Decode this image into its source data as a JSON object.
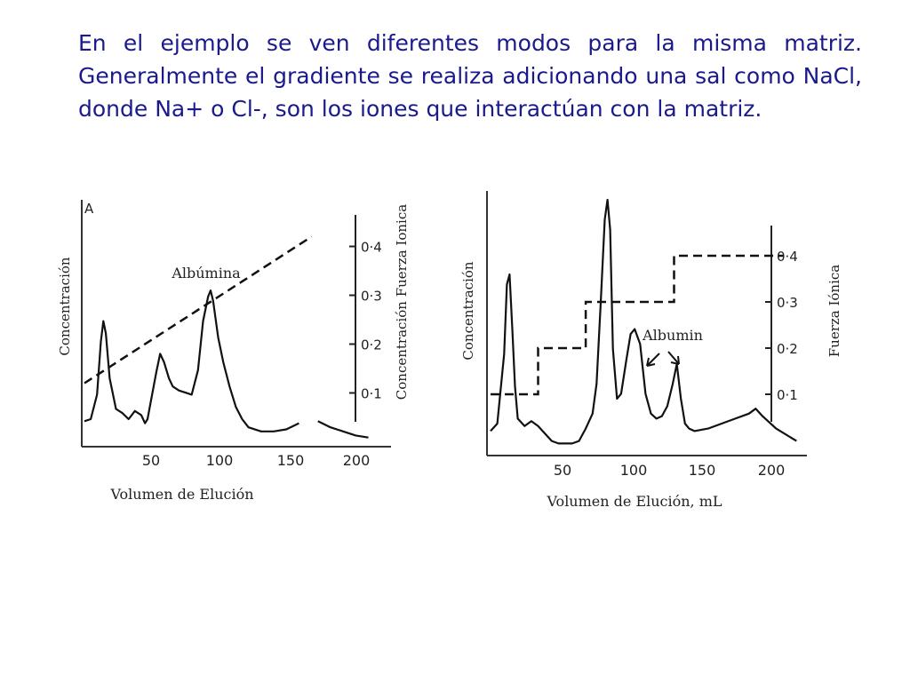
{
  "slide": {
    "text": "En el ejemplo se ven diferentes modos para la misma matriz. Generalmente el gradiente se realiza adicionando una sal como NaCl, donde Na+ o Cl-, son los iones que interactúan con la matriz."
  },
  "chart_data": [
    {
      "type": "line",
      "panel_label": "A",
      "xlabel": "Volumen de Elución",
      "ylabel": "Concentración",
      "y2label": "Concentración Fuerza Ionica",
      "x_ticks": [
        50,
        100,
        150,
        200
      ],
      "y2_ticks": [
        "0·1",
        "0·2",
        "0·3",
        "0·4"
      ],
      "xlim": [
        0,
        230
      ],
      "y2lim": [
        0.05,
        0.45
      ],
      "annotation": "Albúmina",
      "series": [
        {
          "x": [
            0,
            5,
            10,
            13,
            15,
            17,
            20,
            25,
            30,
            35,
            40,
            45,
            48,
            50,
            53,
            57,
            60,
            63,
            67,
            70,
            75,
            80,
            85,
            90,
            94,
            98,
            100,
            102,
            106,
            110,
            115,
            120,
            125,
            130,
            140,
            150,
            160,
            170
          ],
          "y": [
            9,
            10,
            22,
            48,
            58,
            52,
            30,
            15,
            13,
            10,
            14,
            12,
            8,
            10,
            20,
            33,
            42,
            38,
            30,
            26,
            24,
            23,
            22,
            34,
            58,
            70,
            73,
            68,
            50,
            38,
            26,
            16,
            10,
            6,
            4,
            4,
            5,
            8
          ]
        },
        {
          "x": [
            185,
            195,
            205,
            215,
            225
          ],
          "y": [
            9,
            6,
            4,
            2,
            1
          ]
        },
        {
          "x": [
            0,
            180
          ],
          "y2": [
            0.12,
            0.42
          ]
        }
      ]
    },
    {
      "type": "line",
      "xlabel": "Volumen de Elución, mL",
      "ylabel": "Concentración",
      "y2label": "Fuerza Iónica",
      "x_ticks": [
        50,
        100,
        150,
        200
      ],
      "y2_ticks": [
        "0·1",
        "0·2",
        "0·3",
        "0·4"
      ],
      "xlim": [
        0,
        230
      ],
      "y2lim": [
        0.05,
        0.45
      ],
      "annotation": "Albumin",
      "series": [
        {
          "x": [
            0,
            5,
            10,
            12,
            14,
            16,
            18,
            20,
            25,
            30,
            35,
            40,
            45,
            50,
            55,
            60,
            65,
            70,
            75,
            78,
            81,
            84,
            86,
            88,
            90,
            93,
            96,
            100,
            103,
            106,
            110,
            114,
            118,
            122,
            126,
            130,
            134,
            137,
            140,
            143,
            146,
            150,
            160,
            170,
            180,
            190,
            195,
            200,
            210,
            225
          ],
          "y": [
            7,
            10,
            38,
            66,
            70,
            48,
            25,
            12,
            9,
            11,
            9,
            6,
            3,
            2,
            2,
            2,
            3,
            8,
            14,
            26,
            58,
            92,
            100,
            88,
            40,
            20,
            22,
            36,
            46,
            48,
            42,
            22,
            14,
            12,
            13,
            17,
            26,
            34,
            20,
            10,
            8,
            7,
            8,
            10,
            12,
            14,
            16,
            13,
            8,
            3
          ]
        },
        {
          "x": [
            0,
            20,
            35,
            35,
            70,
            70,
            135,
            135,
            215
          ],
          "y2": [
            0.1,
            0.1,
            0.1,
            0.2,
            0.2,
            0.3,
            0.3,
            0.4,
            0.4
          ]
        }
      ]
    }
  ]
}
